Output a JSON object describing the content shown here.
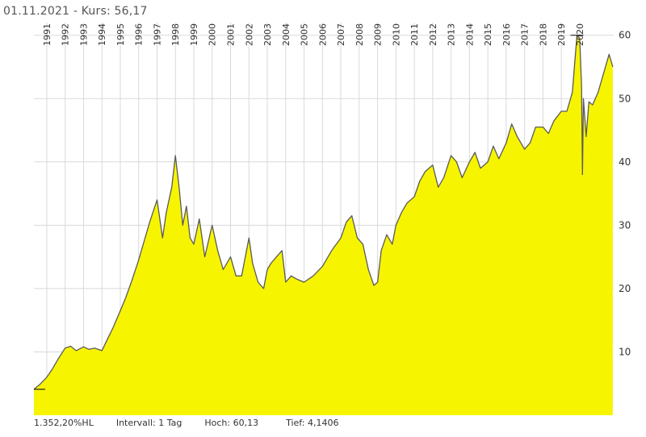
{
  "header": {
    "date": "01.11.2021",
    "separator": "-",
    "price_label": "Kurs: 56,17"
  },
  "footer": {
    "performance": "1.352,20%HL",
    "interval": "Intervall: 1 Tag",
    "high": "Hoch:  60,13",
    "low": "Tief: 4,1406"
  },
  "colors": {
    "area_fill": "#f7f400",
    "line": "#5a5a5a",
    "grid": "#d9d9d9",
    "background": "#ffffff"
  },
  "chart_data": {
    "type": "area",
    "title": "01.11.2021 - Kurs: 56,17",
    "xlabel": "",
    "ylabel": "",
    "ylim": [
      0,
      62
    ],
    "x_range": [
      1990.3,
      2021.85
    ],
    "y_ticks": [
      {
        "value": 10,
        "label": "10"
      },
      {
        "value": 20,
        "label": "20"
      },
      {
        "value": 30,
        "label": "30"
      },
      {
        "value": 40,
        "label": "40"
      },
      {
        "value": 50,
        "label": "50"
      },
      {
        "value": 60,
        "label": "60"
      }
    ],
    "x_ticks": [
      {
        "value": 1991,
        "label": "1991"
      },
      {
        "value": 1992,
        "label": "1992"
      },
      {
        "value": 1993,
        "label": "1993"
      },
      {
        "value": 1994,
        "label": "1994"
      },
      {
        "value": 1995,
        "label": "1995"
      },
      {
        "value": 1996,
        "label": "1996"
      },
      {
        "value": 1997,
        "label": "1997"
      },
      {
        "value": 1998,
        "label": "1998"
      },
      {
        "value": 1999,
        "label": "1999"
      },
      {
        "value": 2000,
        "label": "2000"
      },
      {
        "value": 2001,
        "label": "2001"
      },
      {
        "value": 2002,
        "label": "2002"
      },
      {
        "value": 2003,
        "label": "2003"
      },
      {
        "value": 2004,
        "label": "2004"
      },
      {
        "value": 2005,
        "label": "2005"
      },
      {
        "value": 2006,
        "label": "2006"
      },
      {
        "value": 2007,
        "label": "2007"
      },
      {
        "value": 2008,
        "label": "2008"
      },
      {
        "value": 2009,
        "label": "2009"
      },
      {
        "value": 2010,
        "label": "2010"
      },
      {
        "value": 2011,
        "label": "2011"
      },
      {
        "value": 2012,
        "label": "2012"
      },
      {
        "value": 2013,
        "label": "2013"
      },
      {
        "value": 2014,
        "label": "2014"
      },
      {
        "value": 2015,
        "label": "2015"
      },
      {
        "value": 2016,
        "label": "2016"
      },
      {
        "value": 2017,
        "label": "2017"
      },
      {
        "value": 2018,
        "label": "2018"
      },
      {
        "value": 2019,
        "label": "2019"
      },
      {
        "value": 2020,
        "label": "2020"
      }
    ],
    "year_label_texts": [
      "1991",
      "1992",
      "1993",
      "1994",
      "1995",
      "1996",
      "1997",
      "1998",
      "1999",
      "2000",
      "2001",
      "2002",
      "2003",
      "2004",
      "2005",
      "2006",
      "2007",
      "2008",
      "2009",
      "2010",
      "2011",
      "2012",
      "2013",
      "2014",
      "2015",
      "2016",
      "2017",
      "2018",
      "2019",
      "2020"
    ],
    "series": [
      {
        "x": [
          1990.3,
          1990.6,
          1991.0,
          1991.3,
          1991.6,
          1992.0,
          1992.3,
          1992.6,
          1993.0,
          1993.3,
          1993.6,
          1994.0,
          1994.3,
          1994.6,
          1995.0,
          1995.3,
          1995.6,
          1996.0,
          1996.3,
          1996.6,
          1997.0,
          1997.3,
          1997.5,
          1997.8,
          1998.0,
          1998.2,
          1998.4,
          1998.6,
          1998.8,
          1999.0,
          1999.3,
          1999.6,
          2000.0,
          2000.3,
          2000.6,
          2001.0,
          2001.3,
          2001.6,
          2002.0,
          2002.2,
          2002.5,
          2002.8,
          2003.0,
          2003.2,
          2003.5,
          2003.8,
          2004.0,
          2004.3,
          2004.6,
          2005.0,
          2005.5,
          2006.0,
          2006.5,
          2007.0,
          2007.3,
          2007.6,
          2007.9,
          2008.2,
          2008.5,
          2008.8,
          2009.0,
          2009.2,
          2009.5,
          2009.8,
          2010.0,
          2010.3,
          2010.6,
          2011.0,
          2011.3,
          2011.6,
          2012.0,
          2012.3,
          2012.6,
          2013.0,
          2013.3,
          2013.6,
          2014.0,
          2014.3,
          2014.6,
          2015.0,
          2015.3,
          2015.6,
          2016.0,
          2016.3,
          2016.6,
          2017.0,
          2017.3,
          2017.6,
          2018.0,
          2018.3,
          2018.6,
          2019.0,
          2019.3,
          2019.6,
          2019.85,
          2020.0,
          2020.1,
          2020.15,
          2020.2,
          2020.35,
          2020.5,
          2020.7,
          2021.0,
          2021.3,
          2021.6,
          2021.8
        ],
        "y": [
          4.1,
          4.8,
          6.0,
          7.3,
          8.8,
          10.6,
          10.9,
          10.2,
          10.8,
          10.4,
          10.6,
          10.2,
          12.0,
          13.8,
          16.5,
          18.6,
          21.0,
          24.5,
          27.5,
          30.5,
          34.0,
          28.0,
          32.0,
          36.0,
          41.0,
          36.0,
          30.0,
          33.0,
          28.0,
          27.0,
          31.0,
          25.0,
          30.0,
          26.0,
          23.0,
          25.0,
          22.0,
          22.0,
          28.0,
          24.0,
          21.0,
          20.0,
          23.0,
          24.0,
          25.0,
          26.0,
          21.0,
          22.0,
          21.5,
          21.0,
          22.0,
          23.5,
          26.0,
          28.0,
          30.5,
          31.5,
          28.0,
          27.0,
          23.0,
          20.5,
          21.0,
          26.0,
          28.5,
          27.0,
          30.0,
          32.0,
          33.5,
          34.5,
          37.0,
          38.5,
          39.5,
          36.0,
          37.5,
          41.0,
          40.0,
          37.5,
          40.0,
          41.5,
          39.0,
          40.0,
          42.5,
          40.5,
          43.0,
          46.0,
          44.0,
          42.0,
          43.0,
          45.5,
          45.5,
          44.5,
          46.5,
          48.0,
          48.0,
          51.0,
          60.0,
          59.5,
          52.0,
          38.0,
          50.0,
          44.0,
          49.5,
          49.0,
          51.0,
          54.0,
          57.0,
          55.0
        ]
      }
    ]
  }
}
